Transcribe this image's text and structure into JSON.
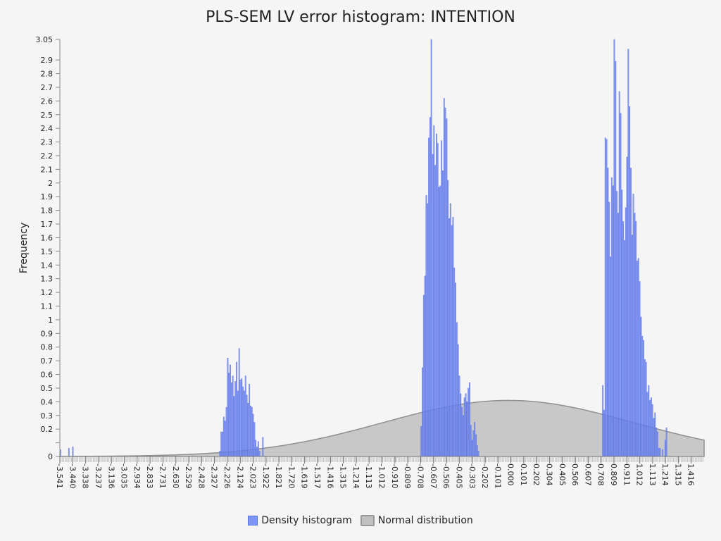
{
  "chart_data": {
    "type": "bar",
    "title": "PLS-SEM LV error histogram: INTENTION",
    "ylabel": "Frequency",
    "xlabel": "",
    "xlim": [
      -3.541,
      1.517
    ],
    "ylim": [
      0,
      3.05
    ],
    "y_ticks": [
      0,
      0.2,
      0.3,
      0.4,
      0.5,
      0.6,
      0.7,
      0.8,
      0.9,
      1,
      1.1,
      1.2,
      1.3,
      1.4,
      1.5,
      1.6,
      1.7,
      1.8,
      1.9,
      2,
      2.1,
      2.2,
      2.3,
      2.4,
      2.5,
      2.6,
      2.7,
      2.8,
      2.9,
      3.05
    ],
    "y_tick_labels": [
      "0",
      "0.2",
      "0.3",
      "0.4",
      "0.5",
      "0.6",
      "0.7",
      "0.8",
      "0.9",
      "1",
      "1.1",
      "1.2",
      "1.3",
      "1.4",
      "1.5",
      "1.6",
      "1.7",
      "1.8",
      "1.9",
      "2",
      "2.1",
      "2.2",
      "2.3",
      "2.4",
      "2.5",
      "2.6",
      "2.7",
      "2.8",
      "2.9",
      "3.05"
    ],
    "x_tick_labels": [
      "-3.541",
      "-3.440",
      "-3.338",
      "-3.237",
      "-3.136",
      "-3.035",
      "-2.934",
      "-2.833",
      "-2.731",
      "-2.630",
      "-2.529",
      "-2.428",
      "-2.327",
      "-2.226",
      "-2.124",
      "-2.023",
      "-1.922",
      "-1.821",
      "-1.720",
      "-1.619",
      "-1.517",
      "-1.416",
      "-1.315",
      "-1.214",
      "-1.113",
      "-1.012",
      "-0.910",
      "-0.809",
      "-0.708",
      "-0.607",
      "-0.506",
      "-0.405",
      "-0.303",
      "-0.202",
      "-0.101",
      "0.000",
      "0.101",
      "0.202",
      "0.304",
      "0.405",
      "0.506",
      "0.607",
      "0.708",
      "0.809",
      "0.911",
      "1.012",
      "1.113",
      "1.214",
      "1.315",
      "1.416"
    ],
    "series": [
      {
        "name": "Density histogram",
        "type": "bar",
        "color": "#7f95f2",
        "values": [
          {
            "x": -3.535,
            "y": 0.05
          },
          {
            "x": -3.469,
            "y": 0.06
          },
          {
            "x": -3.438,
            "y": 0.07
          },
          {
            "x": -2.283,
            "y": 0.04
          },
          {
            "x": -2.273,
            "y": 0.18
          },
          {
            "x": -2.263,
            "y": 0.18
          },
          {
            "x": -2.253,
            "y": 0.29
          },
          {
            "x": -2.243,
            "y": 0.26
          },
          {
            "x": -2.232,
            "y": 0.36
          },
          {
            "x": -2.222,
            "y": 0.72
          },
          {
            "x": -2.212,
            "y": 0.61
          },
          {
            "x": -2.202,
            "y": 0.67
          },
          {
            "x": -2.192,
            "y": 0.54
          },
          {
            "x": -2.182,
            "y": 0.59
          },
          {
            "x": -2.172,
            "y": 0.44
          },
          {
            "x": -2.162,
            "y": 0.55
          },
          {
            "x": -2.152,
            "y": 0.69
          },
          {
            "x": -2.142,
            "y": 0.48
          },
          {
            "x": -2.132,
            "y": 0.79
          },
          {
            "x": -2.122,
            "y": 0.56
          },
          {
            "x": -2.112,
            "y": 0.57
          },
          {
            "x": -2.102,
            "y": 0.51
          },
          {
            "x": -2.092,
            "y": 0.48
          },
          {
            "x": -2.082,
            "y": 0.59
          },
          {
            "x": -2.072,
            "y": 0.45
          },
          {
            "x": -2.062,
            "y": 0.39
          },
          {
            "x": -2.052,
            "y": 0.53
          },
          {
            "x": -2.042,
            "y": 0.37
          },
          {
            "x": -2.032,
            "y": 0.36
          },
          {
            "x": -2.022,
            "y": 0.31
          },
          {
            "x": -2.012,
            "y": 0.25
          },
          {
            "x": -2.002,
            "y": 0.12
          },
          {
            "x": -1.992,
            "y": 0.07
          },
          {
            "x": -1.982,
            "y": 0.11
          },
          {
            "x": -1.972,
            "y": 0.04
          },
          {
            "x": -1.946,
            "y": 0.14
          },
          {
            "x": -0.703,
            "y": 0.22
          },
          {
            "x": -0.693,
            "y": 0.65
          },
          {
            "x": -0.683,
            "y": 1.18
          },
          {
            "x": -0.673,
            "y": 1.32
          },
          {
            "x": -0.663,
            "y": 1.91
          },
          {
            "x": -0.653,
            "y": 1.85
          },
          {
            "x": -0.643,
            "y": 2.33
          },
          {
            "x": -0.633,
            "y": 2.48
          },
          {
            "x": -0.623,
            "y": 3.05
          },
          {
            "x": -0.613,
            "y": 2.21
          },
          {
            "x": -0.603,
            "y": 2.42
          },
          {
            "x": -0.593,
            "y": 2.13
          },
          {
            "x": -0.583,
            "y": 2.36
          },
          {
            "x": -0.573,
            "y": 2.29
          },
          {
            "x": -0.563,
            "y": 1.97
          },
          {
            "x": -0.553,
            "y": 1.98
          },
          {
            "x": -0.543,
            "y": 2.31
          },
          {
            "x": -0.533,
            "y": 2.09
          },
          {
            "x": -0.523,
            "y": 2.62
          },
          {
            "x": -0.513,
            "y": 2.55
          },
          {
            "x": -0.503,
            "y": 2.47
          },
          {
            "x": -0.493,
            "y": 2.02
          },
          {
            "x": -0.483,
            "y": 1.74
          },
          {
            "x": -0.473,
            "y": 1.85
          },
          {
            "x": -0.463,
            "y": 1.69
          },
          {
            "x": -0.453,
            "y": 1.75
          },
          {
            "x": -0.443,
            "y": 1.38
          },
          {
            "x": -0.433,
            "y": 1.27
          },
          {
            "x": -0.423,
            "y": 0.98
          },
          {
            "x": -0.413,
            "y": 0.82
          },
          {
            "x": -0.403,
            "y": 0.59
          },
          {
            "x": -0.393,
            "y": 0.46
          },
          {
            "x": -0.383,
            "y": 0.36
          },
          {
            "x": -0.373,
            "y": 0.3
          },
          {
            "x": -0.363,
            "y": 0.43
          },
          {
            "x": -0.353,
            "y": 0.46
          },
          {
            "x": -0.343,
            "y": 0.4
          },
          {
            "x": -0.333,
            "y": 0.5
          },
          {
            "x": -0.323,
            "y": 0.54
          },
          {
            "x": -0.313,
            "y": 0.23
          },
          {
            "x": -0.303,
            "y": 0.12
          },
          {
            "x": -0.293,
            "y": 0.19
          },
          {
            "x": -0.283,
            "y": 0.25
          },
          {
            "x": -0.273,
            "y": 0.16
          },
          {
            "x": -0.263,
            "y": 0.08
          },
          {
            "x": -0.253,
            "y": 0.04
          },
          {
            "x": 0.723,
            "y": 0.52
          },
          {
            "x": 0.733,
            "y": 0.34
          },
          {
            "x": 0.743,
            "y": 2.33
          },
          {
            "x": 0.753,
            "y": 2.32
          },
          {
            "x": 0.763,
            "y": 2.11
          },
          {
            "x": 0.773,
            "y": 1.86
          },
          {
            "x": 0.783,
            "y": 1.46
          },
          {
            "x": 0.793,
            "y": 2.04
          },
          {
            "x": 0.803,
            "y": 1.98
          },
          {
            "x": 0.813,
            "y": 3.05
          },
          {
            "x": 0.823,
            "y": 2.89
          },
          {
            "x": 0.833,
            "y": 1.94
          },
          {
            "x": 0.843,
            "y": 1.78
          },
          {
            "x": 0.853,
            "y": 2.67
          },
          {
            "x": 0.863,
            "y": 2.51
          },
          {
            "x": 0.873,
            "y": 1.95
          },
          {
            "x": 0.883,
            "y": 1.72
          },
          {
            "x": 0.893,
            "y": 1.58
          },
          {
            "x": 0.903,
            "y": 1.82
          },
          {
            "x": 0.913,
            "y": 2.19
          },
          {
            "x": 0.923,
            "y": 2.98
          },
          {
            "x": 0.933,
            "y": 2.56
          },
          {
            "x": 0.943,
            "y": 2.11
          },
          {
            "x": 0.953,
            "y": 1.62
          },
          {
            "x": 0.963,
            "y": 1.92
          },
          {
            "x": 0.973,
            "y": 1.78
          },
          {
            "x": 0.983,
            "y": 1.72
          },
          {
            "x": 0.993,
            "y": 1.43
          },
          {
            "x": 1.003,
            "y": 1.45
          },
          {
            "x": 1.013,
            "y": 1.28
          },
          {
            "x": 1.023,
            "y": 1.02
          },
          {
            "x": 1.033,
            "y": 0.88
          },
          {
            "x": 1.043,
            "y": 0.85
          },
          {
            "x": 1.053,
            "y": 0.71
          },
          {
            "x": 1.063,
            "y": 0.69
          },
          {
            "x": 1.073,
            "y": 0.47
          },
          {
            "x": 1.083,
            "y": 0.52
          },
          {
            "x": 1.093,
            "y": 0.41
          },
          {
            "x": 1.103,
            "y": 0.43
          },
          {
            "x": 1.113,
            "y": 0.38
          },
          {
            "x": 1.123,
            "y": 0.28
          },
          {
            "x": 1.133,
            "y": 0.32
          },
          {
            "x": 1.143,
            "y": 0.21
          },
          {
            "x": 1.153,
            "y": 0.18
          },
          {
            "x": 1.163,
            "y": 0.06
          },
          {
            "x": 1.173,
            "y": 0.06
          },
          {
            "x": 1.193,
            "y": 0.05
          },
          {
            "x": 1.213,
            "y": 0.12
          },
          {
            "x": 1.223,
            "y": 0.21
          }
        ]
      },
      {
        "name": "Normal distribution",
        "type": "area",
        "color": "#aaaaaa",
        "mean": -0.02,
        "sd": 0.98,
        "peak": 0.41
      }
    ],
    "legend": {
      "placement": "bottom-center",
      "entries": [
        "Density histogram",
        "Normal distribution"
      ]
    },
    "grid": false
  }
}
